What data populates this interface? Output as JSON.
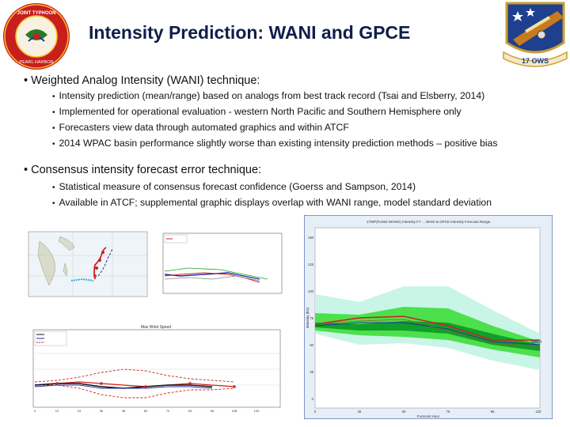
{
  "title": "Intensity Prediction: WANI and GPCE",
  "logos": {
    "left": {
      "name": "JTWC seal",
      "text_top": "JOINT TYPHOON WARNING CENTER",
      "text_bottom": "PEARL HARBOR HAWAII"
    },
    "right": {
      "name": "17 OWS patch",
      "text": "17 OWS"
    }
  },
  "sections": [
    {
      "bullet": "• Weighted Analog Intensity (WANI) technique:",
      "items": [
        "Intensity prediction (mean/range) based on analogs from best track record (Tsai and Elsberry, 2014)",
        "Implemented for operational evaluation - western North Pacific and Southern Hemisphere only",
        "Forecasters view data through automated graphics and within ATCF",
        "2014 WPAC basin performance slightly worse than existing intensity prediction methods – positive bias"
      ]
    },
    {
      "bullet": "• Consensus intensity forecast error technique:",
      "items": [
        "Statistical measure of consensus forecast confidence (Goerss and Sampson, 2014)",
        "Available in ATCF; supplemental graphic displays overlap with WANI range, model standard deviation"
      ]
    }
  ],
  "colors": {
    "title": "#0f1e4a",
    "gpce_outer": "#c8f5e6",
    "gpce_mid": "#4de04d",
    "gpce_inner": "#0fa02a",
    "forecast_line": "#d02020",
    "plot_border": "#4060a0"
  },
  "figures": {
    "gpce": {
      "title": "17WP(FUNG-WONG) Intensity FY ... WANI & GPCE Intensity Forecast Range",
      "xlabel": "Forecast Hour",
      "ylabel": "Intensity (kts)",
      "x_ticks": [
        "0",
        "25",
        "50",
        "75",
        "96",
        "120"
      ],
      "y_ticks": [
        "150",
        "125",
        "100",
        "75",
        "50",
        "25",
        "0"
      ],
      "legend": "WANI"
    },
    "lower_left": {
      "title": "Max Wind Speed",
      "x_ticks": [
        "0",
        "12",
        "24",
        "36",
        "48",
        "60",
        "72",
        "84",
        "96",
        "108",
        "120"
      ]
    }
  }
}
